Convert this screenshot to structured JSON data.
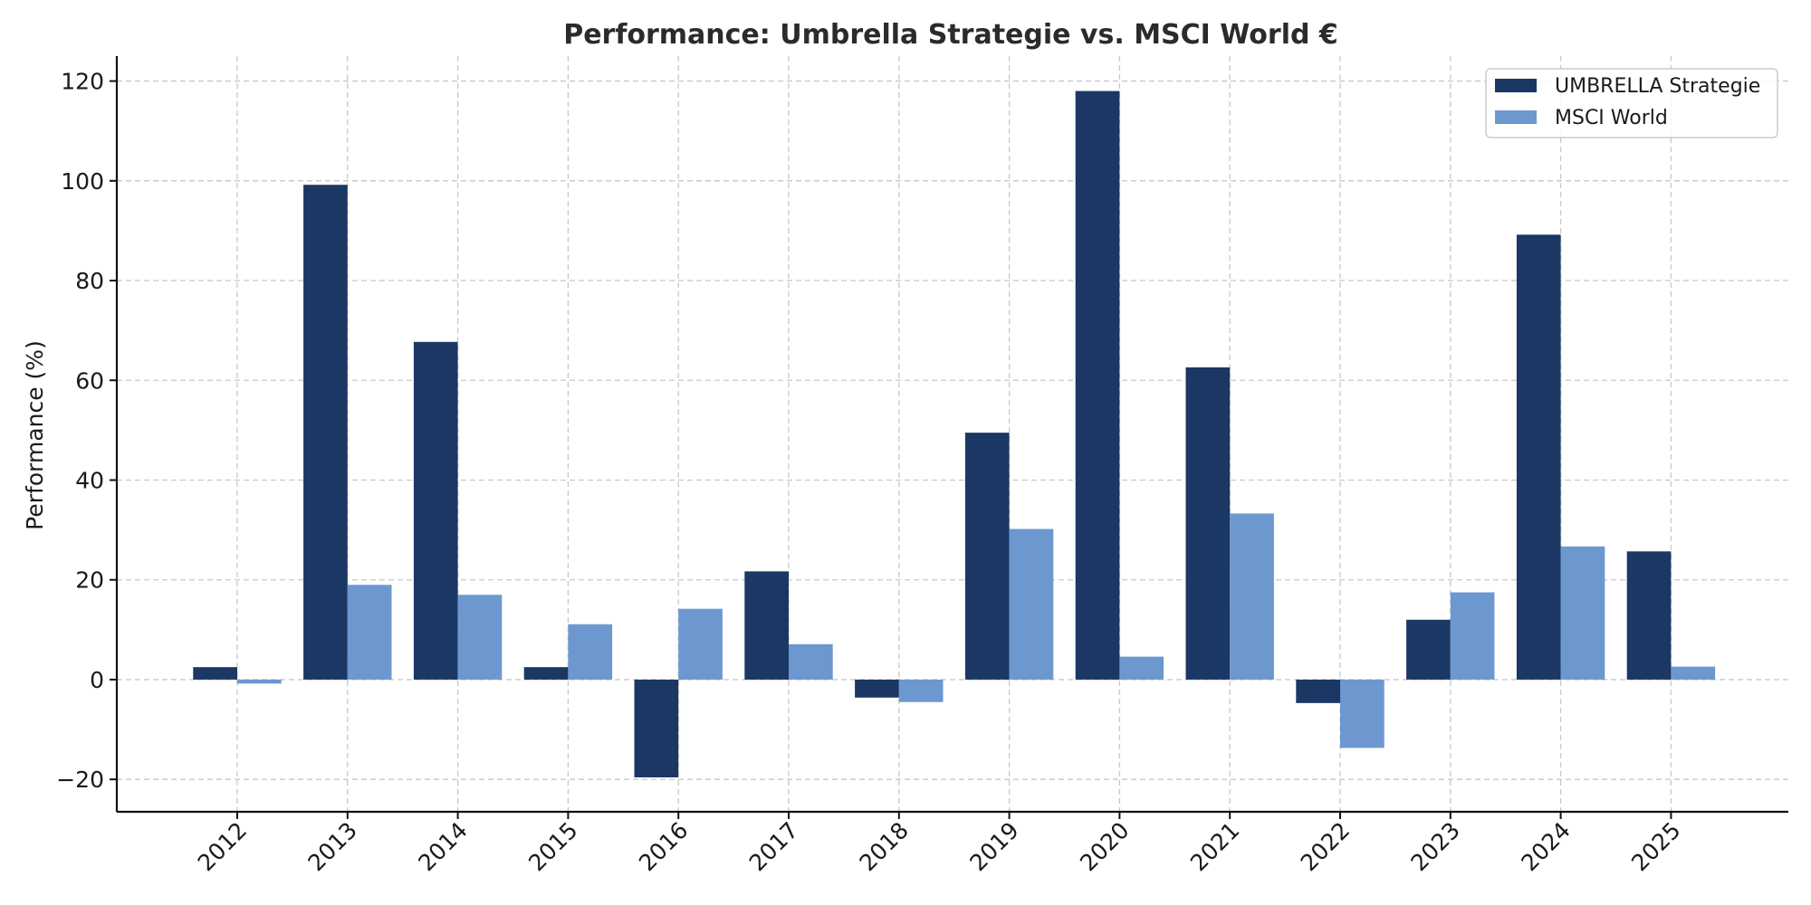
{
  "chart_data": {
    "type": "bar",
    "title": "Performance: Umbrella Strategie vs. MSCI World €",
    "xlabel": "",
    "ylabel": "Performance (%)",
    "categories": [
      "2012",
      "2013",
      "2014",
      "2015",
      "2016",
      "2017",
      "2018",
      "2019",
      "2020",
      "2021",
      "2022",
      "2023",
      "2024",
      "2025"
    ],
    "series": [
      {
        "name": "UMBRELLA Strategie",
        "color": "#1b3764",
        "values": [
          2.5,
          99.2,
          67.7,
          2.5,
          -19.6,
          21.7,
          -3.6,
          49.5,
          118.0,
          62.6,
          -4.7,
          12.0,
          89.2,
          25.7
        ]
      },
      {
        "name": "MSCI World",
        "color": "#6d98cf",
        "values": [
          -0.8,
          19.0,
          17.0,
          11.1,
          14.2,
          7.1,
          -4.5,
          30.2,
          4.6,
          33.3,
          -13.7,
          17.5,
          26.7,
          2.6
        ]
      }
    ],
    "ylim": [
      -26.5,
      125
    ],
    "yticks": [
      -20,
      0,
      20,
      40,
      60,
      80,
      100,
      120
    ],
    "ytick_labels": [
      "−20",
      "0",
      "20",
      "40",
      "60",
      "80",
      "100",
      "120"
    ],
    "grid": true,
    "legend_position": "top-right"
  }
}
